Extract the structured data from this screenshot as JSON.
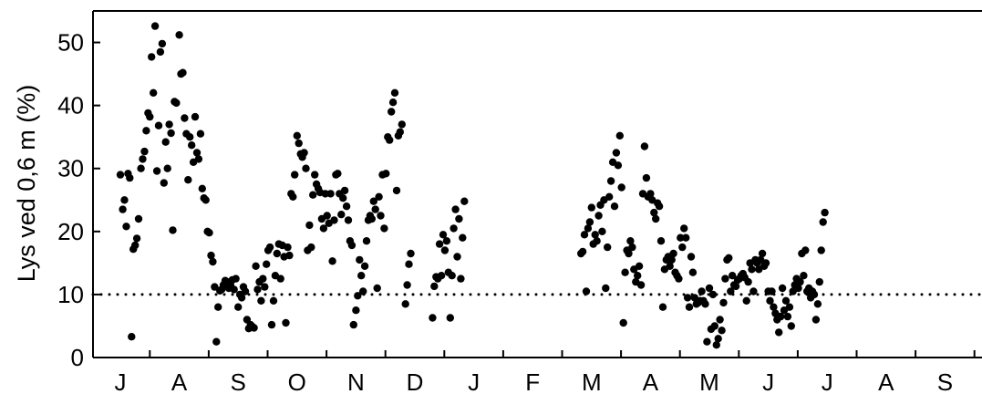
{
  "chart_data": {
    "type": "scatter",
    "title": "",
    "xlabel": "",
    "ylabel": "Lys ved 0,6 m (%)",
    "ylim": [
      0,
      55
    ],
    "y_ticks": [
      0,
      10,
      20,
      30,
      40,
      50
    ],
    "x_ticks": [
      "J",
      "A",
      "S",
      "O",
      "N",
      "D",
      "J",
      "F",
      "M",
      "A",
      "M",
      "J",
      "J",
      "A",
      "S"
    ],
    "reference_line": {
      "y": 10,
      "style": "dotted"
    },
    "marker_color": "#000000",
    "points": [
      [
        0.0,
        29
      ],
      [
        0.04,
        23.5
      ],
      [
        0.07,
        25
      ],
      [
        0.1,
        20.8
      ],
      [
        0.13,
        29.2
      ],
      [
        0.16,
        28.5
      ],
      [
        0.19,
        3.3
      ],
      [
        0.22,
        17.2
      ],
      [
        0.25,
        17.8
      ],
      [
        0.28,
        18.9
      ],
      [
        0.31,
        22
      ],
      [
        0.35,
        30
      ],
      [
        0.38,
        31.5
      ],
      [
        0.41,
        32.7
      ],
      [
        0.44,
        36
      ],
      [
        0.47,
        38.8
      ],
      [
        0.5,
        38.2
      ],
      [
        0.53,
        47.7
      ],
      [
        0.56,
        42
      ],
      [
        0.59,
        52.6
      ],
      [
        0.62,
        29.6
      ],
      [
        0.65,
        36.8
      ],
      [
        0.68,
        48.5
      ],
      [
        0.71,
        49.8
      ],
      [
        0.74,
        27.7
      ],
      [
        0.77,
        34.2
      ],
      [
        0.8,
        30
      ],
      [
        0.83,
        37
      ],
      [
        0.86,
        35.6
      ],
      [
        0.89,
        20.2
      ],
      [
        0.92,
        40.6
      ],
      [
        0.95,
        40.4
      ],
      [
        1.0,
        51.2
      ],
      [
        1.03,
        45
      ],
      [
        1.06,
        45.2
      ],
      [
        1.09,
        38
      ],
      [
        1.12,
        35.5
      ],
      [
        1.15,
        28.2
      ],
      [
        1.18,
        35
      ],
      [
        1.21,
        33.7
      ],
      [
        1.24,
        31
      ],
      [
        1.27,
        38.2
      ],
      [
        1.3,
        32.5
      ],
      [
        1.33,
        31.5
      ],
      [
        1.36,
        35.5
      ],
      [
        1.39,
        26.8
      ],
      [
        1.42,
        25.3
      ],
      [
        1.45,
        25
      ],
      [
        1.48,
        20
      ],
      [
        1.51,
        19.8
      ],
      [
        1.54,
        16.2
      ],
      [
        1.57,
        15.2
      ],
      [
        1.6,
        11.2
      ],
      [
        1.63,
        2.5
      ],
      [
        1.66,
        8
      ],
      [
        1.69,
        10.6
      ],
      [
        1.72,
        10.8
      ],
      [
        1.75,
        11.5
      ],
      [
        1.78,
        12.2
      ],
      [
        1.81,
        12
      ],
      [
        1.84,
        11
      ],
      [
        1.87,
        11.5
      ],
      [
        1.9,
        12.3
      ],
      [
        1.93,
        10.8
      ],
      [
        1.96,
        12.5
      ],
      [
        2.0,
        8
      ],
      [
        2.03,
        10
      ],
      [
        2.06,
        9.5
      ],
      [
        2.09,
        11.2
      ],
      [
        2.12,
        10.5
      ],
      [
        2.15,
        6
      ],
      [
        2.18,
        4.6
      ],
      [
        2.21,
        5.2
      ],
      [
        2.24,
        4.9
      ],
      [
        2.27,
        4.7
      ],
      [
        2.3,
        14.5
      ],
      [
        2.33,
        10.8
      ],
      [
        2.36,
        12
      ],
      [
        2.39,
        9
      ],
      [
        2.42,
        12.5
      ],
      [
        2.45,
        11.2
      ],
      [
        2.48,
        14.8
      ],
      [
        2.51,
        17
      ],
      [
        2.54,
        17.5
      ],
      [
        2.57,
        5.2
      ],
      [
        2.6,
        9
      ],
      [
        2.63,
        13
      ],
      [
        2.66,
        16.5
      ],
      [
        2.69,
        18
      ],
      [
        2.72,
        12.5
      ],
      [
        2.75,
        17.8
      ],
      [
        2.78,
        16
      ],
      [
        2.81,
        5.5
      ],
      [
        2.84,
        17.5
      ],
      [
        2.87,
        16.2
      ],
      [
        2.9,
        26
      ],
      [
        2.93,
        25.5
      ],
      [
        2.96,
        29
      ],
      [
        3.0,
        35.2
      ],
      [
        3.03,
        34
      ],
      [
        3.06,
        32.3
      ],
      [
        3.09,
        31.8
      ],
      [
        3.12,
        32.5
      ],
      [
        3.15,
        30
      ],
      [
        3.18,
        17
      ],
      [
        3.21,
        21
      ],
      [
        3.24,
        17.5
      ],
      [
        3.27,
        25.8
      ],
      [
        3.3,
        29
      ],
      [
        3.33,
        27.5
      ],
      [
        3.36,
        26.8
      ],
      [
        3.39,
        26.2
      ],
      [
        3.42,
        22
      ],
      [
        3.45,
        20.5
      ],
      [
        3.48,
        26
      ],
      [
        3.51,
        22.5
      ],
      [
        3.54,
        21.3
      ],
      [
        3.57,
        26
      ],
      [
        3.6,
        15.3
      ],
      [
        3.63,
        21.8
      ],
      [
        3.66,
        29
      ],
      [
        3.69,
        29.2
      ],
      [
        3.72,
        26
      ],
      [
        3.75,
        22.7
      ],
      [
        3.78,
        25.3
      ],
      [
        3.81,
        26.5
      ],
      [
        3.84,
        24
      ],
      [
        3.87,
        21.8
      ],
      [
        3.9,
        18.5
      ],
      [
        3.93,
        17.8
      ],
      [
        3.96,
        5.2
      ],
      [
        4.0,
        7.5
      ],
      [
        4.03,
        9.8
      ],
      [
        4.06,
        15.5
      ],
      [
        4.09,
        13
      ],
      [
        4.12,
        10.5
      ],
      [
        4.15,
        14.5
      ],
      [
        4.18,
        18.5
      ],
      [
        4.21,
        21.8
      ],
      [
        4.24,
        22.5
      ],
      [
        4.27,
        22
      ],
      [
        4.3,
        24.8
      ],
      [
        4.33,
        23.5
      ],
      [
        4.36,
        11
      ],
      [
        4.39,
        25.5
      ],
      [
        4.42,
        22.5
      ],
      [
        4.45,
        29
      ],
      [
        4.48,
        20.5
      ],
      [
        4.51,
        29.2
      ],
      [
        4.54,
        35
      ],
      [
        4.57,
        34.5
      ],
      [
        4.6,
        39
      ],
      [
        4.63,
        40.5
      ],
      [
        4.66,
        42
      ],
      [
        4.69,
        26.5
      ],
      [
        4.72,
        35.2
      ],
      [
        4.75,
        35.8
      ],
      [
        4.78,
        37
      ],
      [
        4.84,
        8.5
      ],
      [
        4.87,
        11.5
      ],
      [
        4.9,
        14.8
      ],
      [
        4.93,
        16.5
      ],
      [
        5.3,
        6.3
      ],
      [
        5.33,
        11.3
      ],
      [
        5.36,
        12.8
      ],
      [
        5.39,
        12.5
      ],
      [
        5.42,
        18
      ],
      [
        5.45,
        13
      ],
      [
        5.48,
        19.5
      ],
      [
        5.51,
        17
      ],
      [
        5.54,
        18.5
      ],
      [
        5.57,
        13.5
      ],
      [
        5.6,
        6.3
      ],
      [
        5.63,
        13
      ],
      [
        5.66,
        20.5
      ],
      [
        5.69,
        23.5
      ],
      [
        5.72,
        16
      ],
      [
        5.75,
        22
      ],
      [
        5.78,
        12.5
      ],
      [
        5.81,
        19
      ],
      [
        5.84,
        24.8
      ],
      [
        7.82,
        16.5
      ],
      [
        7.85,
        16.8
      ],
      [
        7.88,
        19.5
      ],
      [
        7.91,
        10.5
      ],
      [
        7.94,
        20.5
      ],
      [
        7.97,
        21.5
      ],
      [
        8.0,
        23.8
      ],
      [
        8.03,
        18
      ],
      [
        8.06,
        19.5
      ],
      [
        8.09,
        18.5
      ],
      [
        8.12,
        22.5
      ],
      [
        8.15,
        24.2
      ],
      [
        8.18,
        20
      ],
      [
        8.21,
        25
      ],
      [
        8.24,
        11
      ],
      [
        8.27,
        17.5
      ],
      [
        8.3,
        25.5
      ],
      [
        8.33,
        28
      ],
      [
        8.36,
        31
      ],
      [
        8.39,
        24
      ],
      [
        8.42,
        32.5
      ],
      [
        8.45,
        30.5
      ],
      [
        8.48,
        35.2
      ],
      [
        8.51,
        27
      ],
      [
        8.54,
        5.5
      ],
      [
        8.57,
        13.5
      ],
      [
        8.6,
        17
      ],
      [
        8.63,
        16.5
      ],
      [
        8.66,
        18.5
      ],
      [
        8.69,
        17.5
      ],
      [
        8.72,
        14
      ],
      [
        8.75,
        12
      ],
      [
        8.78,
        13
      ],
      [
        8.81,
        14.5
      ],
      [
        8.84,
        11.5
      ],
      [
        8.87,
        26
      ],
      [
        8.9,
        33.5
      ],
      [
        8.93,
        28.5
      ],
      [
        8.96,
        25.5
      ],
      [
        9.0,
        26
      ],
      [
        9.03,
        25
      ],
      [
        9.06,
        23
      ],
      [
        9.09,
        22
      ],
      [
        9.12,
        24.5
      ],
      [
        9.15,
        24
      ],
      [
        9.18,
        18.5
      ],
      [
        9.21,
        8
      ],
      [
        9.24,
        14
      ],
      [
        9.27,
        15.5
      ],
      [
        9.3,
        16
      ],
      [
        9.33,
        14.5
      ],
      [
        9.36,
        15.5
      ],
      [
        9.39,
        16.5
      ],
      [
        9.42,
        13.5
      ],
      [
        9.45,
        13
      ],
      [
        9.48,
        12.5
      ],
      [
        9.51,
        19
      ],
      [
        9.54,
        17.5
      ],
      [
        9.57,
        20.5
      ],
      [
        9.6,
        19
      ],
      [
        9.63,
        9.5
      ],
      [
        9.66,
        8
      ],
      [
        9.69,
        16
      ],
      [
        9.72,
        13.5
      ],
      [
        9.75,
        9.5
      ],
      [
        9.78,
        8.5
      ],
      [
        9.81,
        8.7
      ],
      [
        9.84,
        9
      ],
      [
        9.87,
        10.5
      ],
      [
        9.9,
        9
      ],
      [
        9.93,
        8.5
      ],
      [
        9.96,
        2.5
      ],
      [
        10.0,
        11
      ],
      [
        10.03,
        4.5
      ],
      [
        10.06,
        10
      ],
      [
        10.09,
        5
      ],
      [
        10.12,
        2
      ],
      [
        10.15,
        3
      ],
      [
        10.18,
        6
      ],
      [
        10.21,
        4.3
      ],
      [
        10.24,
        8.7
      ],
      [
        10.27,
        12.5
      ],
      [
        10.3,
        15.5
      ],
      [
        10.33,
        15.8
      ],
      [
        10.36,
        10.5
      ],
      [
        10.39,
        13
      ],
      [
        10.42,
        11.5
      ],
      [
        10.45,
        11.3
      ],
      [
        10.48,
        12.3
      ],
      [
        10.51,
        12.5
      ],
      [
        10.54,
        13
      ],
      [
        10.57,
        13.3
      ],
      [
        10.6,
        12.7
      ],
      [
        10.63,
        9
      ],
      [
        10.66,
        12
      ],
      [
        10.69,
        15
      ],
      [
        10.72,
        14
      ],
      [
        10.75,
        10.5
      ],
      [
        10.78,
        15.5
      ],
      [
        10.81,
        15
      ],
      [
        10.84,
        14
      ],
      [
        10.87,
        15.5
      ],
      [
        10.9,
        16.5
      ],
      [
        10.93,
        14.5
      ],
      [
        10.96,
        15
      ],
      [
        11.0,
        10.5
      ],
      [
        11.03,
        9
      ],
      [
        11.06,
        10.5
      ],
      [
        11.09,
        8
      ],
      [
        11.12,
        7
      ],
      [
        11.15,
        6
      ],
      [
        11.18,
        4
      ],
      [
        11.21,
        6.5
      ],
      [
        11.24,
        11
      ],
      [
        11.27,
        7.5
      ],
      [
        11.3,
        9
      ],
      [
        11.33,
        6.5
      ],
      [
        11.36,
        8
      ],
      [
        11.39,
        5
      ],
      [
        11.42,
        10.5
      ],
      [
        11.45,
        11.5
      ],
      [
        11.48,
        12.5
      ],
      [
        11.51,
        11
      ],
      [
        11.54,
        12
      ],
      [
        11.57,
        16.5
      ],
      [
        11.6,
        13
      ],
      [
        11.63,
        17
      ],
      [
        11.66,
        10.5
      ],
      [
        11.69,
        11
      ],
      [
        11.72,
        9.5
      ],
      [
        11.75,
        10.5
      ],
      [
        11.78,
        10
      ],
      [
        11.81,
        6
      ],
      [
        11.84,
        8.5
      ],
      [
        11.87,
        12
      ],
      [
        11.9,
        17
      ],
      [
        11.93,
        21.5
      ],
      [
        11.96,
        23
      ]
    ]
  }
}
